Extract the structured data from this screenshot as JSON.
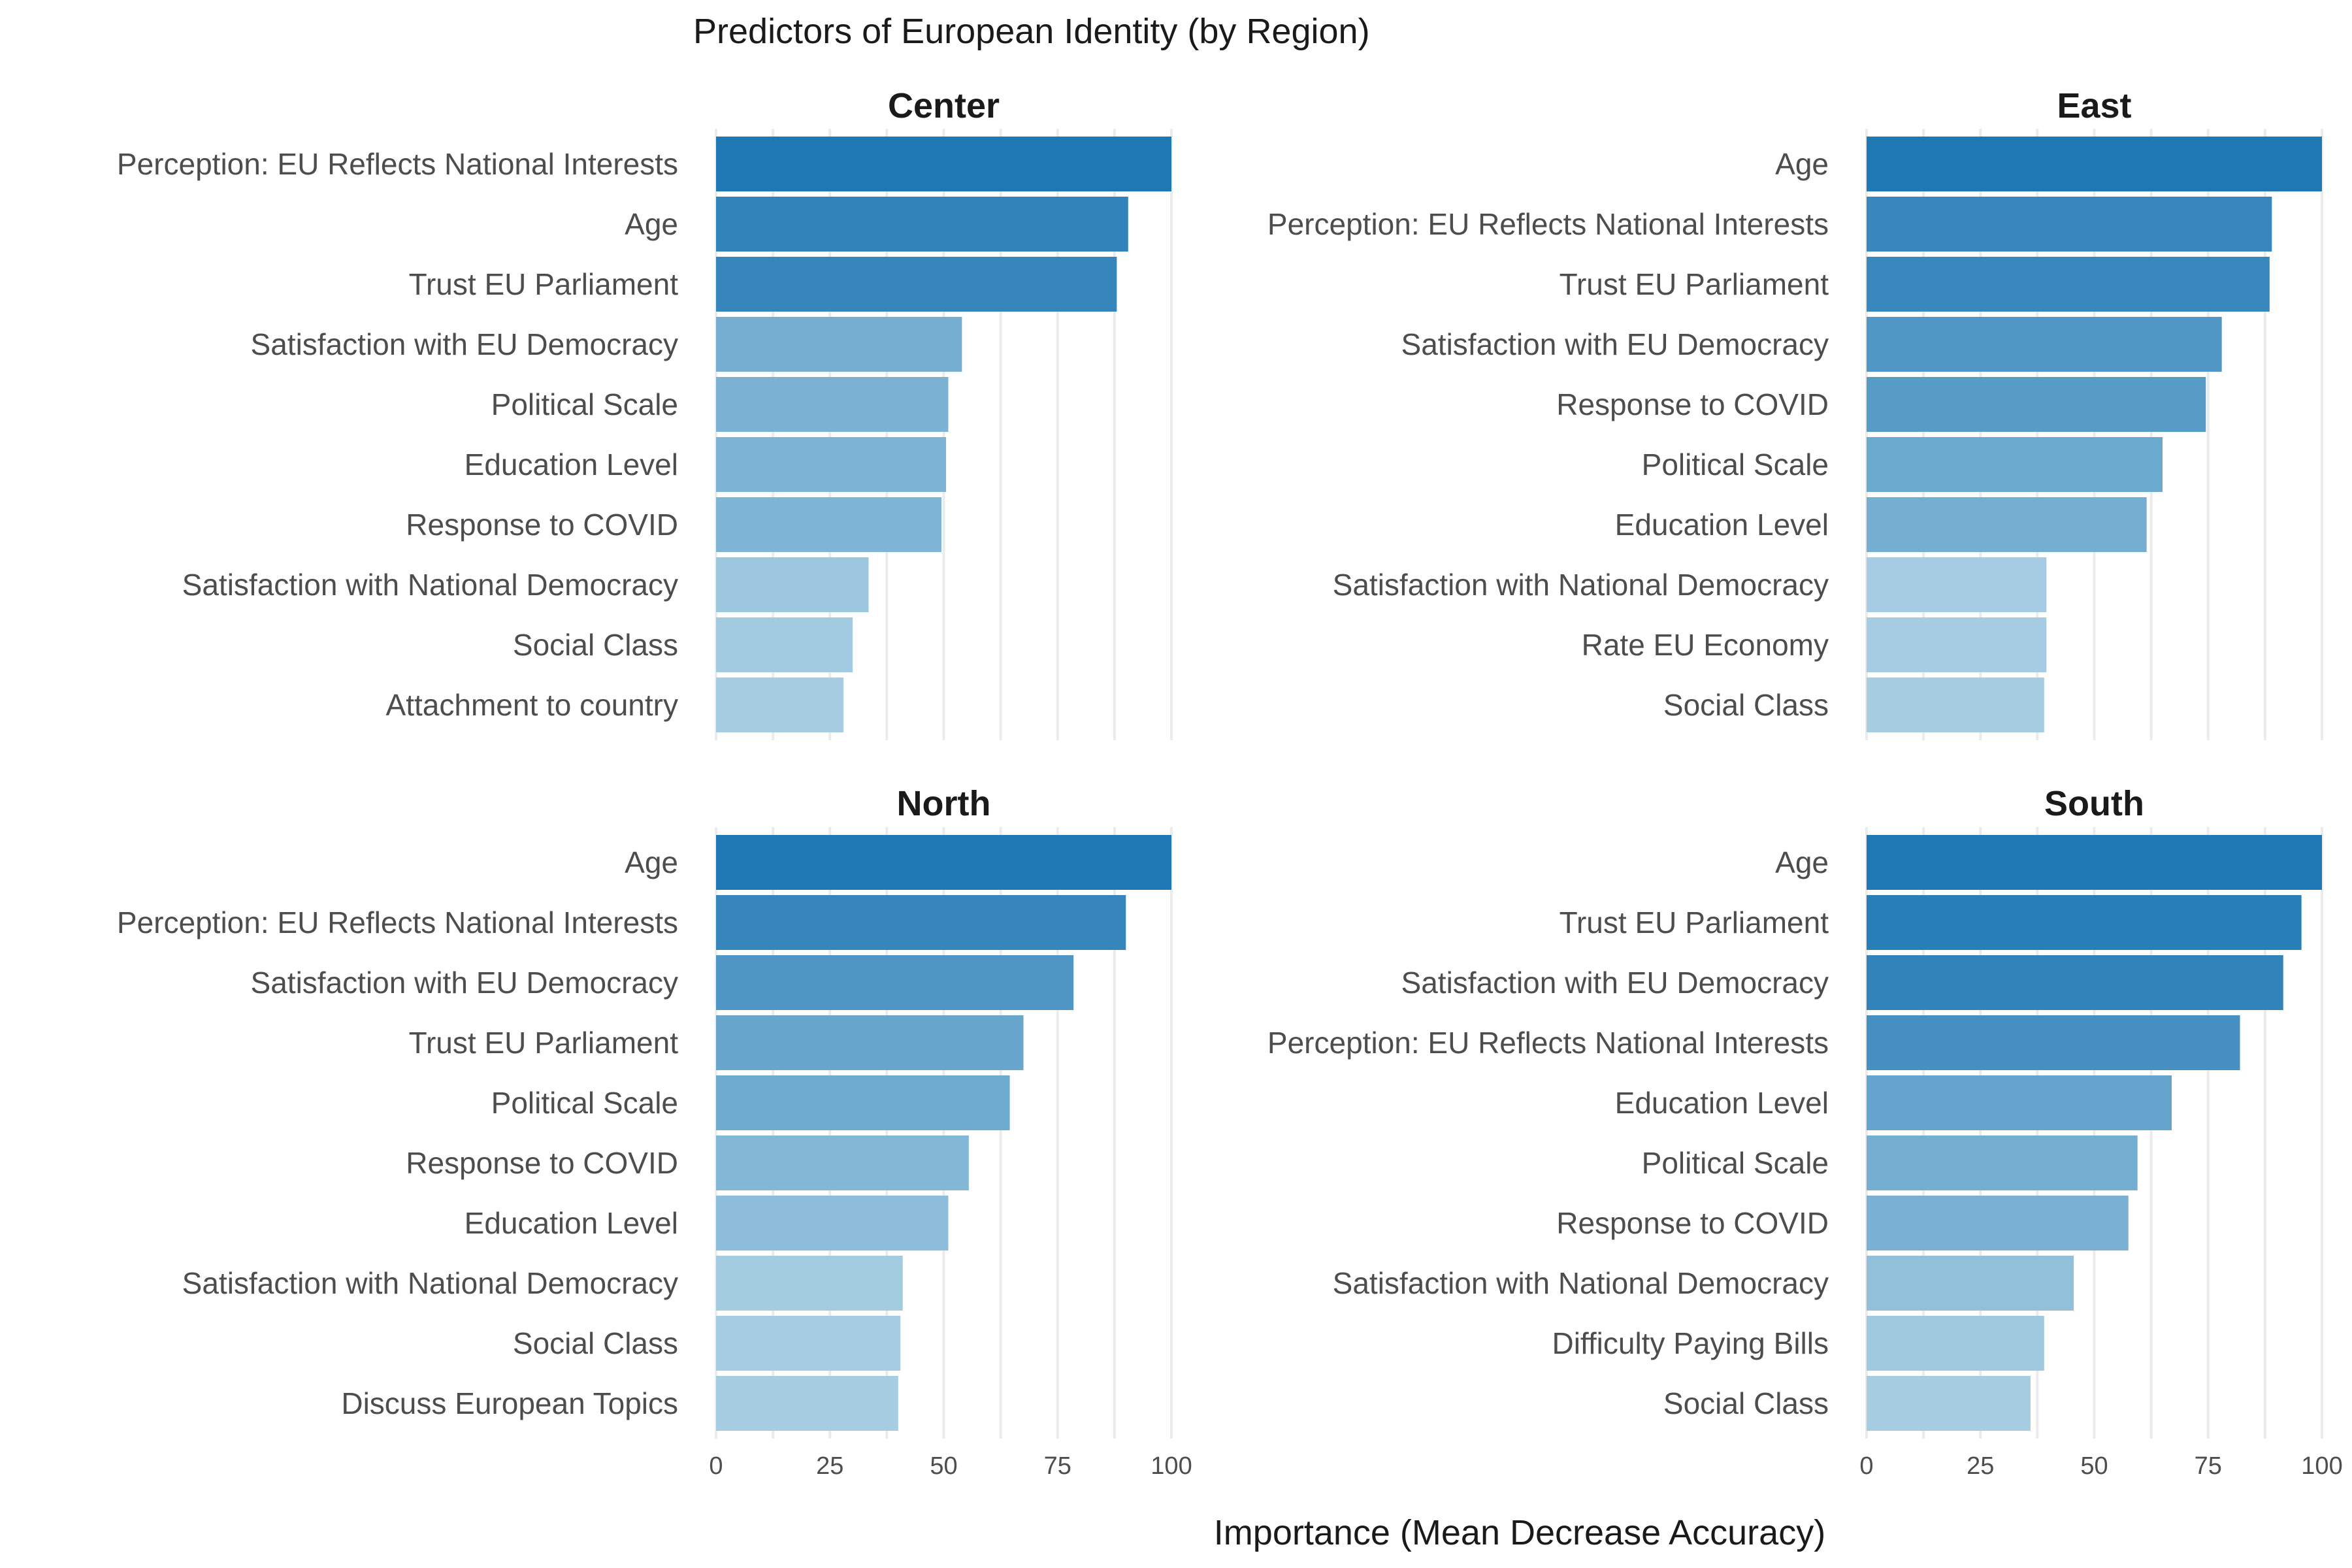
{
  "chart_data": {
    "type": "bar",
    "orientation": "horizontal",
    "title": "Predictors of European Identity (by Region)",
    "xlabel": "Importance (Mean Decrease Accuracy)",
    "ylabel": "",
    "xlim": [
      0,
      100
    ],
    "xticks": [
      "0",
      "25",
      "50",
      "75",
      "100"
    ],
    "grid": true,
    "color_scale": {
      "low": "#a6cde2",
      "high": "#1f78b4"
    },
    "panels": [
      {
        "name": "Center",
        "categories": [
          "Perception: EU Reflects National Interests",
          "Age",
          "Trust EU Parliament",
          "Satisfaction with EU Democracy",
          "Political Scale",
          "Education Level",
          "Response to COVID",
          "Satisfaction with National Democracy",
          "Social Class",
          "Attachment to country"
        ],
        "values": [
          100,
          90.5,
          88,
          54,
          51,
          50.5,
          49.5,
          33.5,
          30,
          28
        ]
      },
      {
        "name": "East",
        "categories": [
          "Age",
          "Perception: EU Reflects National Interests",
          "Trust EU Parliament",
          "Satisfaction with EU Democracy",
          "Response to COVID",
          "Political Scale",
          "Education Level",
          "Satisfaction with National Democracy",
          "Rate EU Economy",
          "Social Class"
        ],
        "values": [
          100,
          89,
          88.5,
          78,
          74.5,
          65,
          61.5,
          39.5,
          39.5,
          39
        ]
      },
      {
        "name": "North",
        "categories": [
          "Age",
          "Perception: EU Reflects National Interests",
          "Satisfaction with EU Democracy",
          "Trust EU Parliament",
          "Political Scale",
          "Response to COVID",
          "Education Level",
          "Satisfaction with National Democracy",
          "Social Class",
          "Discuss European Topics"
        ],
        "values": [
          100,
          90,
          78.5,
          67.5,
          64.5,
          55.5,
          51,
          41,
          40.5,
          40
        ]
      },
      {
        "name": "South",
        "categories": [
          "Age",
          "Trust EU Parliament",
          "Satisfaction with EU Democracy",
          "Perception: EU Reflects National Interests",
          "Education Level",
          "Political Scale",
          "Response to COVID",
          "Satisfaction with National Democracy",
          "Difficulty Paying Bills",
          "Social Class"
        ],
        "values": [
          100,
          95.5,
          91.5,
          82,
          67,
          59.5,
          57.5,
          45.5,
          39,
          36
        ]
      }
    ]
  }
}
